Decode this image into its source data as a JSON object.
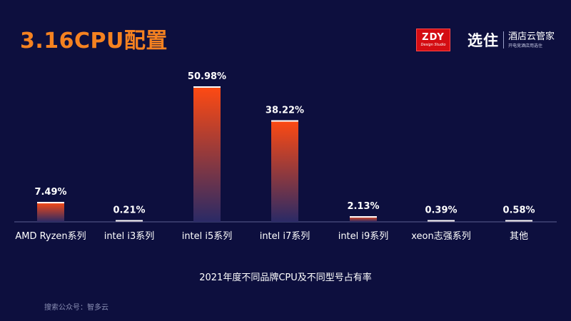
{
  "slide": {
    "title": "3.16CPU配置",
    "logo_main": "ZDY",
    "logo_sub": "Design Studio",
    "partner_main": "选住",
    "partner_name": "酒店云管家",
    "partner_slogan": "开电竞酒店用选住",
    "footnote": "搜索公众号：智多云"
  },
  "colors": {
    "background": "#0d0f3e",
    "title": "#f58220",
    "bar_top": "#ff4a12",
    "bar_bottom": "#2a2a66",
    "bar_cap": "#ffffff",
    "text": "#ffffff",
    "baseline": "#5a5f92"
  },
  "chart_data": {
    "type": "bar",
    "title": "",
    "xlabel": "2021年度不同品牌CPU及不同型号占有率",
    "ylabel": "",
    "categories": [
      "AMD Ryzen系列",
      "intel i3系列",
      "intel i5系列",
      "intel i7系列",
      "intel i9系列",
      "xeon志强系列",
      "其他"
    ],
    "values": [
      7.49,
      0.21,
      50.98,
      38.22,
      2.13,
      0.39,
      0.58
    ],
    "value_labels": [
      "7.49%",
      "0.21%",
      "50.98%",
      "38.22%",
      "2.13%",
      "0.39%",
      "0.58%"
    ],
    "ylim": [
      0,
      50.98
    ],
    "grid": false,
    "legend": "none"
  }
}
